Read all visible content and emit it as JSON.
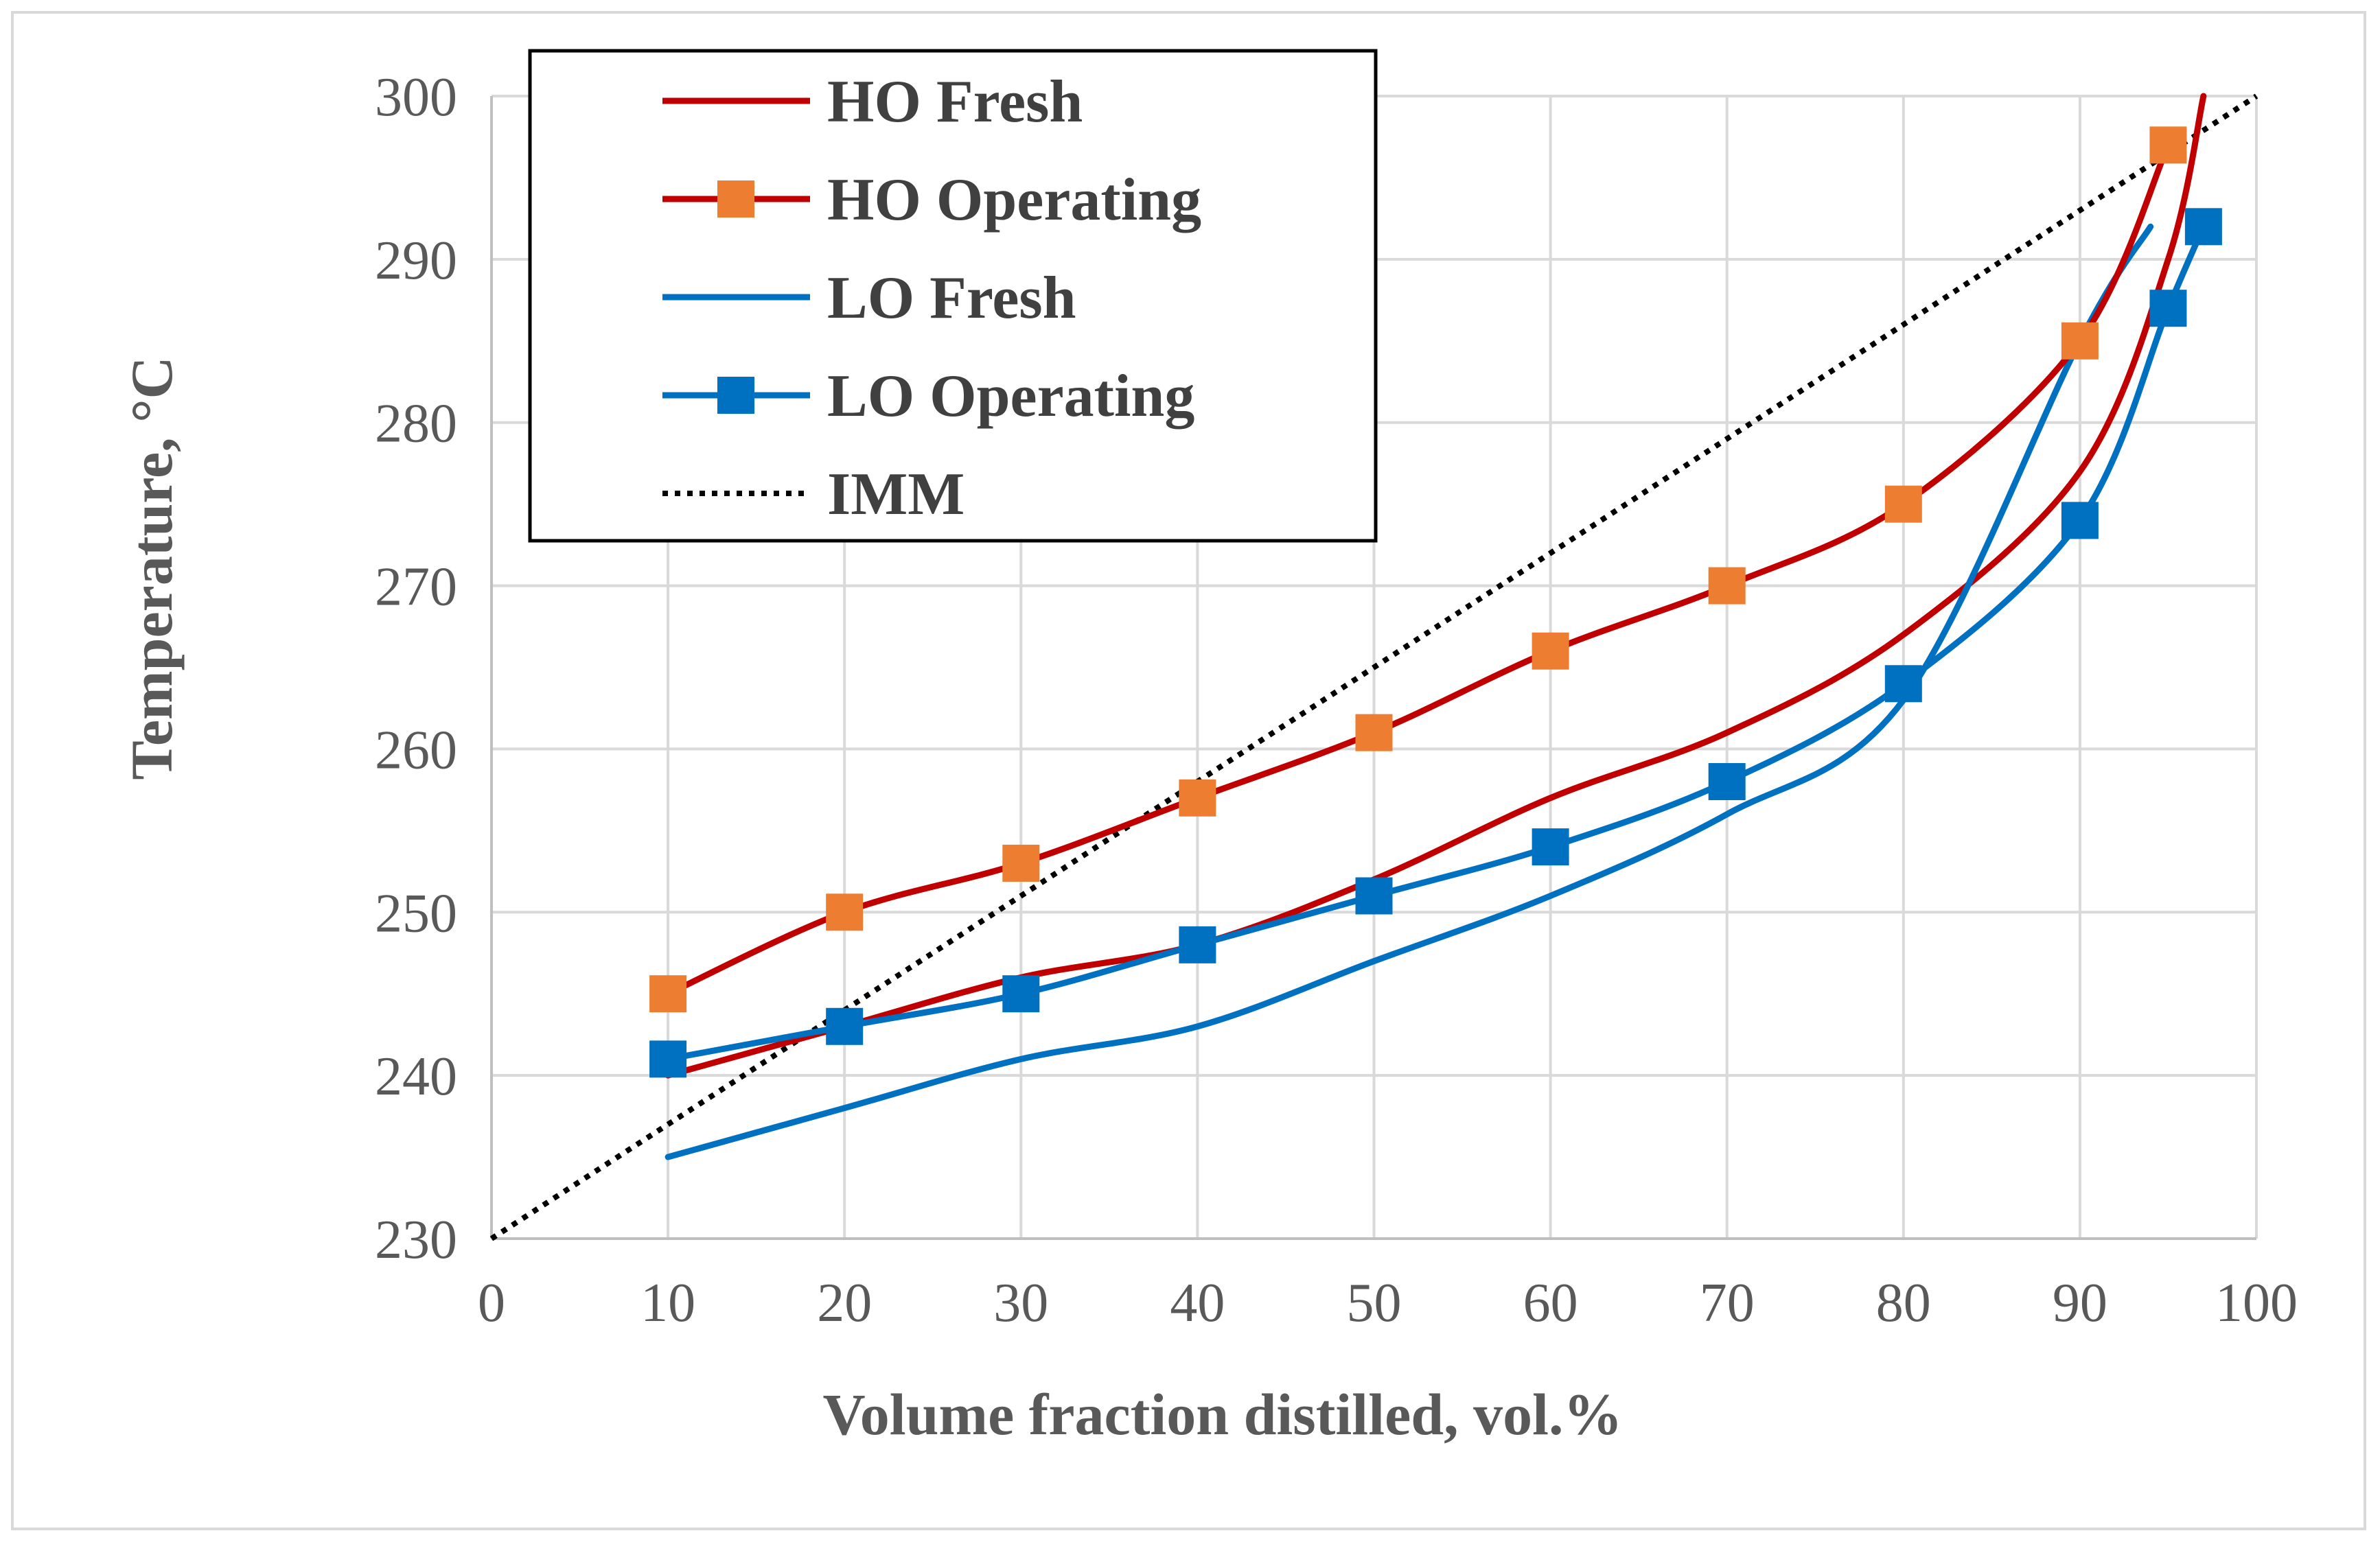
{
  "chart_data": {
    "type": "line",
    "title": "",
    "xlabel": "Volume fraction distilled, vol.%",
    "ylabel": "Temperature, °C",
    "xlim": [
      0,
      100
    ],
    "ylim": [
      230,
      300
    ],
    "xticks": [
      "0",
      "10",
      "20",
      "30",
      "40",
      "50",
      "60",
      "70",
      "80",
      "90",
      "100"
    ],
    "yticks": [
      "230",
      "240",
      "250",
      "260",
      "270",
      "280",
      "290",
      "300"
    ],
    "grid": true,
    "legend_position": "top-left",
    "series": [
      {
        "name": "HO Fresh",
        "color": "#c00000",
        "style": "smooth-line",
        "marker": "none",
        "x": [
          10,
          20,
          30,
          40,
          50,
          60,
          70,
          80,
          90,
          95,
          97
        ],
        "y": [
          240,
          243,
          246,
          248,
          252,
          257,
          261,
          267,
          277,
          290,
          300
        ]
      },
      {
        "name": "HO Operating",
        "color": "#c00000",
        "marker_color": "#ed7d31",
        "style": "smooth-line",
        "marker": "square",
        "x": [
          10,
          20,
          30,
          40,
          50,
          60,
          70,
          80,
          90,
          95
        ],
        "y": [
          245,
          250,
          253,
          257,
          261,
          266,
          270,
          275,
          285,
          297
        ]
      },
      {
        "name": "LO Fresh",
        "color": "#0070c0",
        "style": "smooth-line",
        "marker": "none",
        "x": [
          10,
          20,
          30,
          40,
          50,
          60,
          70,
          80,
          90,
          94
        ],
        "y": [
          235,
          238,
          241,
          243,
          247,
          251,
          256,
          263,
          285,
          292
        ]
      },
      {
        "name": "LO Operating",
        "color": "#0070c0",
        "marker_color": "#0070c0",
        "style": "smooth-line",
        "marker": "square",
        "x": [
          10,
          20,
          30,
          40,
          50,
          60,
          70,
          80,
          90,
          95,
          97
        ],
        "y": [
          241,
          243,
          245,
          248,
          251,
          254,
          258,
          264,
          274,
          287,
          292
        ]
      },
      {
        "name": "IMM",
        "color": "#000000",
        "style": "dotted-line",
        "marker": "none",
        "x": [
          0,
          100
        ],
        "y": [
          230,
          300
        ]
      }
    ]
  }
}
